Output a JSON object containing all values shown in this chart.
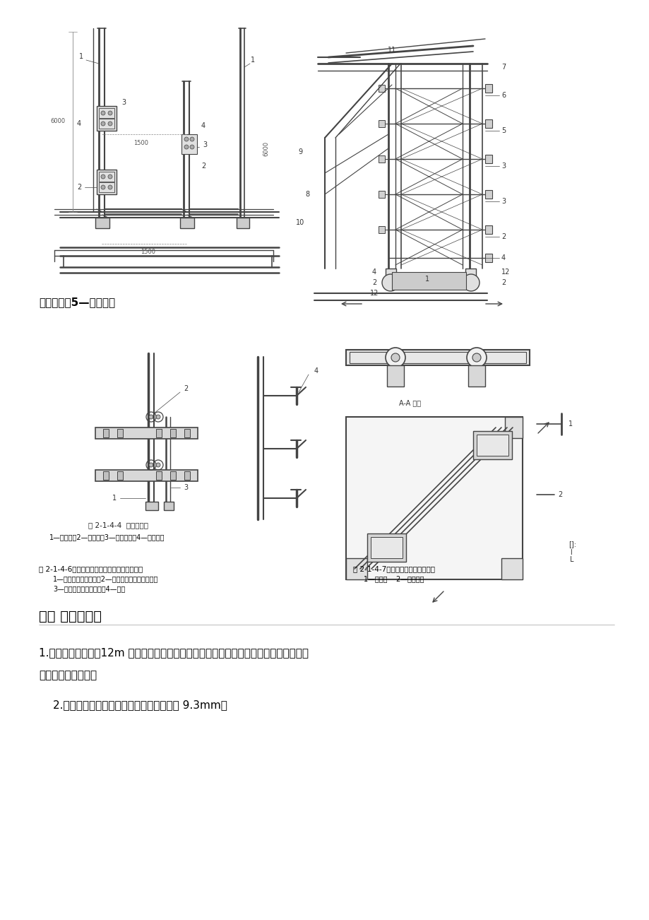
{
  "bg_color": "#ffffff",
  "page_width": 9.2,
  "page_height": 13.02,
  "text_color": "#000000",
  "line_color": "#444444",
  "caption_label": "一停层锁；5—防附装置",
  "section_title": "六　 缆风绳安装",
  "para1_line1": "1.　当井字架安装到12m 高度时，必须在井架体的四角方向系好缆风绳，并与符合标准规",
  "para1_line2": "规定的风缆桩锁固。",
  "para2": "2.　缆风绳必须采用钒丝绳，其直径不小于 9.3mm。",
  "fig246_title": "图 2-1-4-6　导向滑轮、水平腹杆及导轨示意图",
  "fig246_cap1": "1—吸篹底部导向滑轮；2—防坠装置上的导向滑轮；",
  "fig246_cap2": "3—中间有孔的水平腹杆；4—导轨",
  "fig247_title": "图 2-1-4-7　天架与井架架体关系图",
  "fig247_cap": "1—天架；    2—井架架体",
  "fig244_title": "图 2-1-4-4　底盘安装图",
  "fig244_cap": "1—长立杆；2—矩立杆；3—大连接板；4—小连接板"
}
